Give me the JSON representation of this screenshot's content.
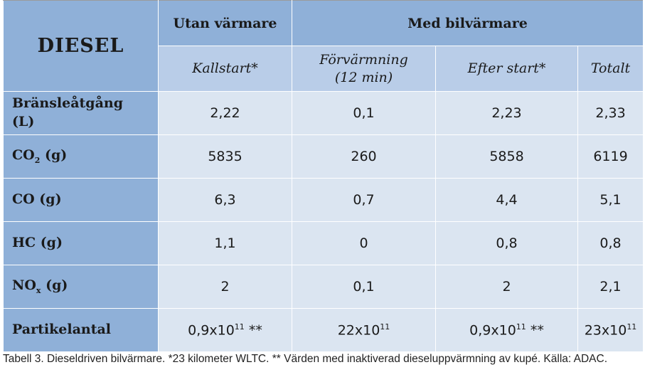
{
  "table": {
    "corner_label": "DIESEL",
    "group_headers": {
      "without_heater": "Utan värmare",
      "with_heater": "Med bilvärmare"
    },
    "sub_headers": {
      "cold_start": "Kallstart*",
      "preheating_line1": "Förvärmning",
      "preheating_line2": "(12 min)",
      "after_start": "Efter start*",
      "total": "Totalt"
    },
    "rows": [
      {
        "label_main": "Bränsleåtgång",
        "label_line2": "(L)",
        "values": [
          "2,22",
          "0,1",
          "2,23",
          "2,33"
        ]
      },
      {
        "label_main": "CO",
        "label_sub": "2",
        "label_suffix": " (g)",
        "values": [
          "5835",
          "260",
          "5858",
          "6119"
        ]
      },
      {
        "label_main": "CO (g)",
        "values": [
          "6,3",
          "0,7",
          "4,4",
          "5,1"
        ]
      },
      {
        "label_main": "HC (g)",
        "values": [
          "1,1",
          "0",
          "0,8",
          "0,8"
        ]
      },
      {
        "label_main": "NO",
        "label_sub": "x",
        "label_suffix": " (g)",
        "values": [
          "2",
          "0,1",
          "2",
          "2,1"
        ]
      },
      {
        "label_main": "Partikelantal",
        "values": [
          {
            "base": "0,9x10",
            "exp": "11",
            "suffix": " **"
          },
          {
            "base": "22x10",
            "exp": "11",
            "suffix": ""
          },
          {
            "base": "0,9x10",
            "exp": "11",
            "suffix": " **"
          },
          {
            "base": "23x10",
            "exp": "11",
            "suffix": ""
          }
        ]
      }
    ]
  },
  "caption": "Tabell 3. Dieseldriven bilvärmare. *23 kilometer WLTC. ** Värden med inaktiverad dieseluppvärmning av kupé. Källa: ADAC.",
  "colors": {
    "header": "#8fb0d8",
    "subheader": "#b9cde8",
    "cell": "#dbe5f1"
  }
}
